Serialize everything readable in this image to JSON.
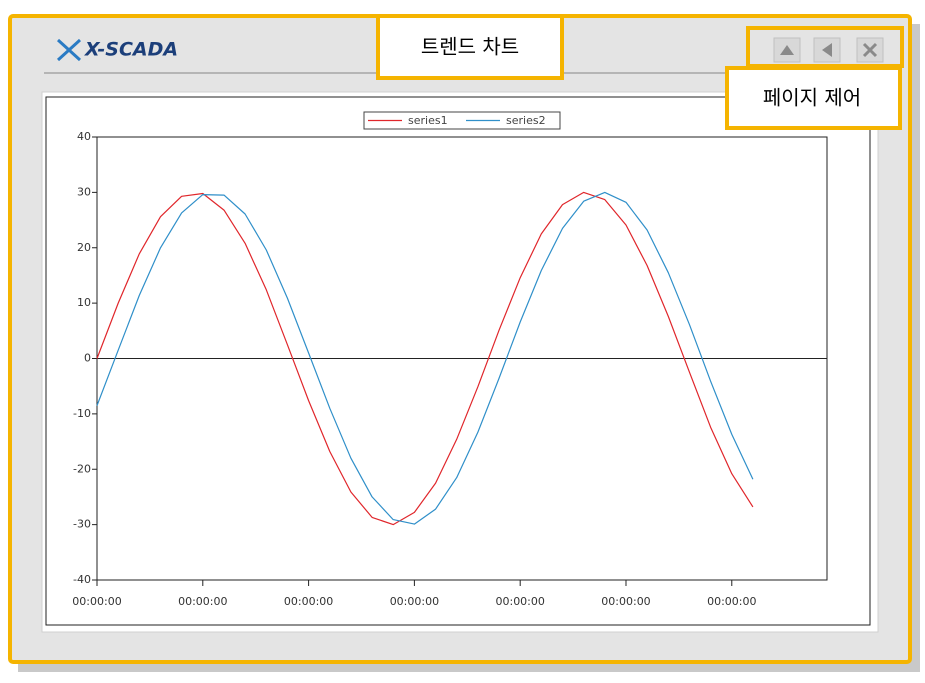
{
  "header": {
    "logo": "X-SCADA",
    "title_callout": "트렌드 차트",
    "control_callout": "페이지 제어"
  },
  "chart_data": {
    "type": "line",
    "x": [
      0,
      2,
      4,
      6,
      8,
      10,
      12,
      14,
      16,
      18,
      20,
      22,
      24,
      26,
      28,
      30,
      32,
      34,
      36,
      38,
      40,
      42,
      44,
      46,
      48,
      50,
      52,
      54,
      56,
      58,
      60,
      62
    ],
    "series": [
      {
        "name": "series1",
        "color": "#e0262b",
        "values": [
          0,
          10.0,
          18.9,
          25.6,
          29.3,
          29.8,
          26.8,
          20.8,
          12.4,
          2.5,
          -7.6,
          -16.8,
          -24.1,
          -28.7,
          -30.0,
          -27.8,
          -22.5,
          -14.6,
          -5.1,
          5.1,
          14.6,
          22.5,
          27.8,
          30.0,
          28.7,
          24.1,
          16.8,
          7.6,
          -2.5,
          -12.4,
          -20.8,
          -26.8
        ]
      },
      {
        "name": "series2",
        "color": "#2f8fc9",
        "values": [
          -8.5,
          1.5,
          11.4,
          20.0,
          26.3,
          29.6,
          29.5,
          26.1,
          19.6,
          10.9,
          1.0,
          -9.0,
          -18.0,
          -25.0,
          -29.1,
          -29.9,
          -27.2,
          -21.5,
          -13.3,
          -3.6,
          6.6,
          15.9,
          23.5,
          28.4,
          30.0,
          28.2,
          23.2,
          15.5,
          6.1,
          -4.1,
          -13.7,
          -21.8
        ]
      }
    ],
    "xlim": [
      0,
      69
    ],
    "xticks": [
      {
        "value": 0,
        "label": "00:00:00"
      },
      {
        "value": 10,
        "label": "00:00:00"
      },
      {
        "value": 20,
        "label": "00:00:00"
      },
      {
        "value": 30,
        "label": "00:00:00"
      },
      {
        "value": 40,
        "label": "00:00:00"
      },
      {
        "value": 50,
        "label": "00:00:00"
      },
      {
        "value": 60,
        "label": "00:00:00"
      }
    ],
    "ylim": [
      -40,
      40
    ],
    "yticks": [
      -40,
      -30,
      -20,
      -10,
      0,
      10,
      20,
      30,
      40
    ],
    "legend": "top"
  }
}
